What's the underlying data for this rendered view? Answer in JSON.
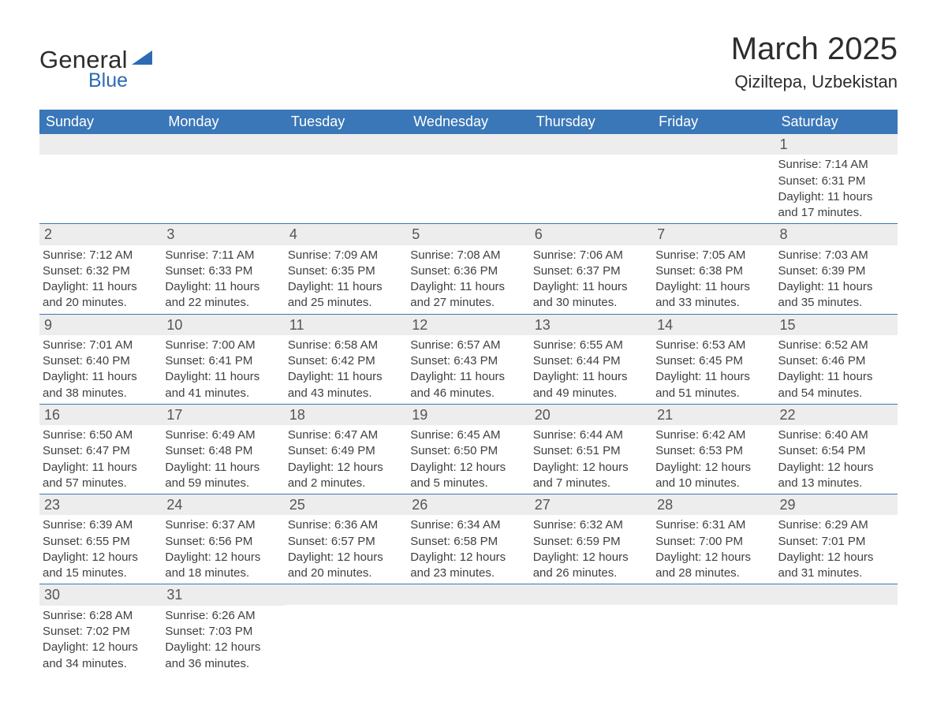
{
  "logo": {
    "text_general": "General",
    "text_blue": "Blue",
    "triangle_color": "#2c6bb3",
    "general_color": "#2d2d2d",
    "blue_color": "#2c6bb3"
  },
  "title": "March 2025",
  "location": "Qiziltepa, Uzbekistan",
  "colors": {
    "header_bg": "#3a77b8",
    "header_text": "#ffffff",
    "daynum_bg": "#ededed",
    "daynum_text": "#555555",
    "body_text": "#404040",
    "row_border": "#3a77b8",
    "page_bg": "#ffffff"
  },
  "typography": {
    "title_fontsize": 40,
    "location_fontsize": 22,
    "header_fontsize": 18,
    "daynum_fontsize": 18,
    "body_fontsize": 15,
    "font_family": "Arial"
  },
  "day_headers": [
    "Sunday",
    "Monday",
    "Tuesday",
    "Wednesday",
    "Thursday",
    "Friday",
    "Saturday"
  ],
  "weeks": [
    [
      {
        "blank": true
      },
      {
        "blank": true
      },
      {
        "blank": true
      },
      {
        "blank": true
      },
      {
        "blank": true
      },
      {
        "blank": true
      },
      {
        "num": "1",
        "sunrise": "Sunrise: 7:14 AM",
        "sunset": "Sunset: 6:31 PM",
        "day1": "Daylight: 11 hours",
        "day2": "and 17 minutes."
      }
    ],
    [
      {
        "num": "2",
        "sunrise": "Sunrise: 7:12 AM",
        "sunset": "Sunset: 6:32 PM",
        "day1": "Daylight: 11 hours",
        "day2": "and 20 minutes."
      },
      {
        "num": "3",
        "sunrise": "Sunrise: 7:11 AM",
        "sunset": "Sunset: 6:33 PM",
        "day1": "Daylight: 11 hours",
        "day2": "and 22 minutes."
      },
      {
        "num": "4",
        "sunrise": "Sunrise: 7:09 AM",
        "sunset": "Sunset: 6:35 PM",
        "day1": "Daylight: 11 hours",
        "day2": "and 25 minutes."
      },
      {
        "num": "5",
        "sunrise": "Sunrise: 7:08 AM",
        "sunset": "Sunset: 6:36 PM",
        "day1": "Daylight: 11 hours",
        "day2": "and 27 minutes."
      },
      {
        "num": "6",
        "sunrise": "Sunrise: 7:06 AM",
        "sunset": "Sunset: 6:37 PM",
        "day1": "Daylight: 11 hours",
        "day2": "and 30 minutes."
      },
      {
        "num": "7",
        "sunrise": "Sunrise: 7:05 AM",
        "sunset": "Sunset: 6:38 PM",
        "day1": "Daylight: 11 hours",
        "day2": "and 33 minutes."
      },
      {
        "num": "8",
        "sunrise": "Sunrise: 7:03 AM",
        "sunset": "Sunset: 6:39 PM",
        "day1": "Daylight: 11 hours",
        "day2": "and 35 minutes."
      }
    ],
    [
      {
        "num": "9",
        "sunrise": "Sunrise: 7:01 AM",
        "sunset": "Sunset: 6:40 PM",
        "day1": "Daylight: 11 hours",
        "day2": "and 38 minutes."
      },
      {
        "num": "10",
        "sunrise": "Sunrise: 7:00 AM",
        "sunset": "Sunset: 6:41 PM",
        "day1": "Daylight: 11 hours",
        "day2": "and 41 minutes."
      },
      {
        "num": "11",
        "sunrise": "Sunrise: 6:58 AM",
        "sunset": "Sunset: 6:42 PM",
        "day1": "Daylight: 11 hours",
        "day2": "and 43 minutes."
      },
      {
        "num": "12",
        "sunrise": "Sunrise: 6:57 AM",
        "sunset": "Sunset: 6:43 PM",
        "day1": "Daylight: 11 hours",
        "day2": "and 46 minutes."
      },
      {
        "num": "13",
        "sunrise": "Sunrise: 6:55 AM",
        "sunset": "Sunset: 6:44 PM",
        "day1": "Daylight: 11 hours",
        "day2": "and 49 minutes."
      },
      {
        "num": "14",
        "sunrise": "Sunrise: 6:53 AM",
        "sunset": "Sunset: 6:45 PM",
        "day1": "Daylight: 11 hours",
        "day2": "and 51 minutes."
      },
      {
        "num": "15",
        "sunrise": "Sunrise: 6:52 AM",
        "sunset": "Sunset: 6:46 PM",
        "day1": "Daylight: 11 hours",
        "day2": "and 54 minutes."
      }
    ],
    [
      {
        "num": "16",
        "sunrise": "Sunrise: 6:50 AM",
        "sunset": "Sunset: 6:47 PM",
        "day1": "Daylight: 11 hours",
        "day2": "and 57 minutes."
      },
      {
        "num": "17",
        "sunrise": "Sunrise: 6:49 AM",
        "sunset": "Sunset: 6:48 PM",
        "day1": "Daylight: 11 hours",
        "day2": "and 59 minutes."
      },
      {
        "num": "18",
        "sunrise": "Sunrise: 6:47 AM",
        "sunset": "Sunset: 6:49 PM",
        "day1": "Daylight: 12 hours",
        "day2": "and 2 minutes."
      },
      {
        "num": "19",
        "sunrise": "Sunrise: 6:45 AM",
        "sunset": "Sunset: 6:50 PM",
        "day1": "Daylight: 12 hours",
        "day2": "and 5 minutes."
      },
      {
        "num": "20",
        "sunrise": "Sunrise: 6:44 AM",
        "sunset": "Sunset: 6:51 PM",
        "day1": "Daylight: 12 hours",
        "day2": "and 7 minutes."
      },
      {
        "num": "21",
        "sunrise": "Sunrise: 6:42 AM",
        "sunset": "Sunset: 6:53 PM",
        "day1": "Daylight: 12 hours",
        "day2": "and 10 minutes."
      },
      {
        "num": "22",
        "sunrise": "Sunrise: 6:40 AM",
        "sunset": "Sunset: 6:54 PM",
        "day1": "Daylight: 12 hours",
        "day2": "and 13 minutes."
      }
    ],
    [
      {
        "num": "23",
        "sunrise": "Sunrise: 6:39 AM",
        "sunset": "Sunset: 6:55 PM",
        "day1": "Daylight: 12 hours",
        "day2": "and 15 minutes."
      },
      {
        "num": "24",
        "sunrise": "Sunrise: 6:37 AM",
        "sunset": "Sunset: 6:56 PM",
        "day1": "Daylight: 12 hours",
        "day2": "and 18 minutes."
      },
      {
        "num": "25",
        "sunrise": "Sunrise: 6:36 AM",
        "sunset": "Sunset: 6:57 PM",
        "day1": "Daylight: 12 hours",
        "day2": "and 20 minutes."
      },
      {
        "num": "26",
        "sunrise": "Sunrise: 6:34 AM",
        "sunset": "Sunset: 6:58 PM",
        "day1": "Daylight: 12 hours",
        "day2": "and 23 minutes."
      },
      {
        "num": "27",
        "sunrise": "Sunrise: 6:32 AM",
        "sunset": "Sunset: 6:59 PM",
        "day1": "Daylight: 12 hours",
        "day2": "and 26 minutes."
      },
      {
        "num": "28",
        "sunrise": "Sunrise: 6:31 AM",
        "sunset": "Sunset: 7:00 PM",
        "day1": "Daylight: 12 hours",
        "day2": "and 28 minutes."
      },
      {
        "num": "29",
        "sunrise": "Sunrise: 6:29 AM",
        "sunset": "Sunset: 7:01 PM",
        "day1": "Daylight: 12 hours",
        "day2": "and 31 minutes."
      }
    ],
    [
      {
        "num": "30",
        "sunrise": "Sunrise: 6:28 AM",
        "sunset": "Sunset: 7:02 PM",
        "day1": "Daylight: 12 hours",
        "day2": "and 34 minutes."
      },
      {
        "num": "31",
        "sunrise": "Sunrise: 6:26 AM",
        "sunset": "Sunset: 7:03 PM",
        "day1": "Daylight: 12 hours",
        "day2": "and 36 minutes."
      },
      {
        "trailing": true
      },
      {
        "trailing": true
      },
      {
        "trailing": true
      },
      {
        "trailing": true
      },
      {
        "trailing": true
      }
    ]
  ]
}
